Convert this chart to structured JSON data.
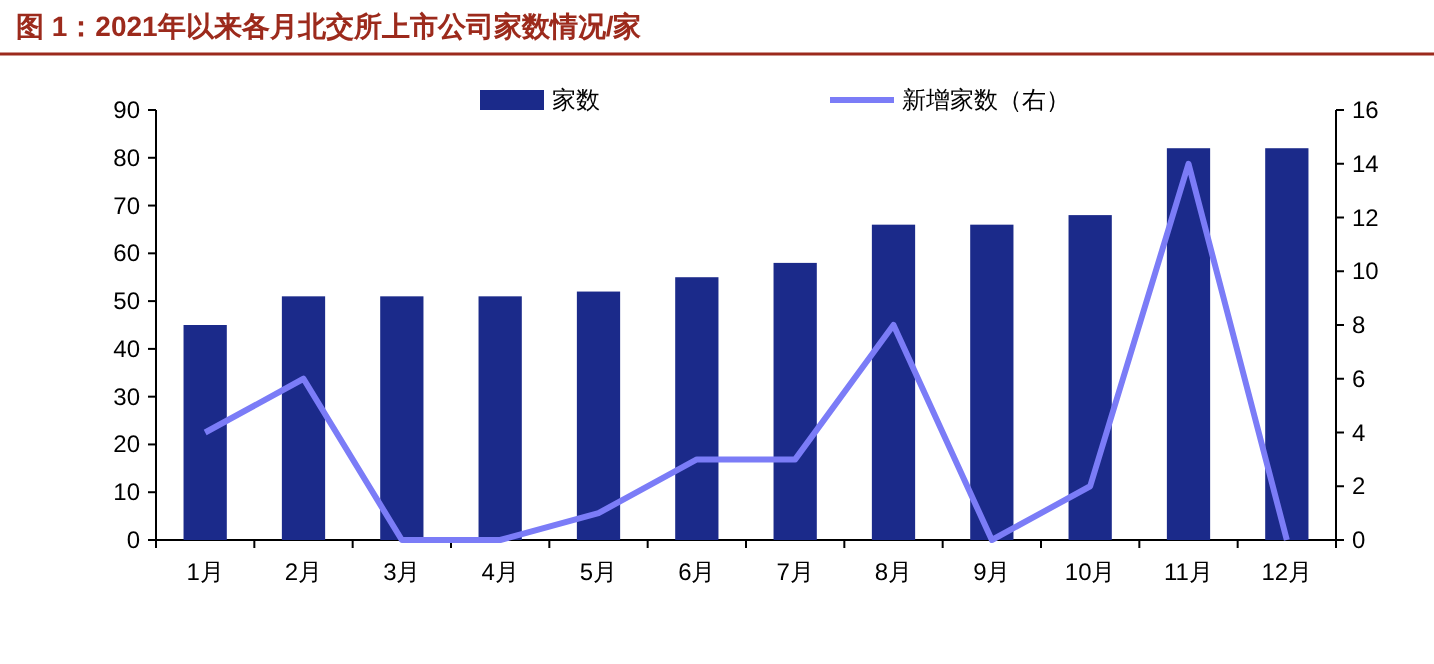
{
  "chart_data": {
    "type": "bar",
    "title": "图 1：2021年以来各月北交所上市公司家数情况/家",
    "categories": [
      "1月",
      "2月",
      "3月",
      "4月",
      "5月",
      "6月",
      "7月",
      "8月",
      "9月",
      "10月",
      "11月",
      "12月"
    ],
    "series": [
      {
        "name": "家数",
        "color": "#1b2a8a",
        "values": [
          45,
          51,
          51,
          51,
          52,
          55,
          58,
          66,
          66,
          68,
          82,
          82
        ]
      },
      {
        "name": "新增家数（右）",
        "type": "line",
        "axis": "y2",
        "color": "#7b7cf7",
        "values": [
          4,
          6,
          0,
          0,
          1,
          3,
          3,
          8,
          0,
          2,
          14,
          0
        ]
      }
    ],
    "ylim": [
      0,
      90
    ],
    "yticks": [
      0,
      10,
      20,
      30,
      40,
      50,
      60,
      70,
      80,
      90
    ],
    "y2lim": [
      0,
      16
    ],
    "y2ticks": [
      0,
      2,
      4,
      6,
      8,
      10,
      12,
      14,
      16
    ],
    "legend": "top",
    "grid": false
  }
}
